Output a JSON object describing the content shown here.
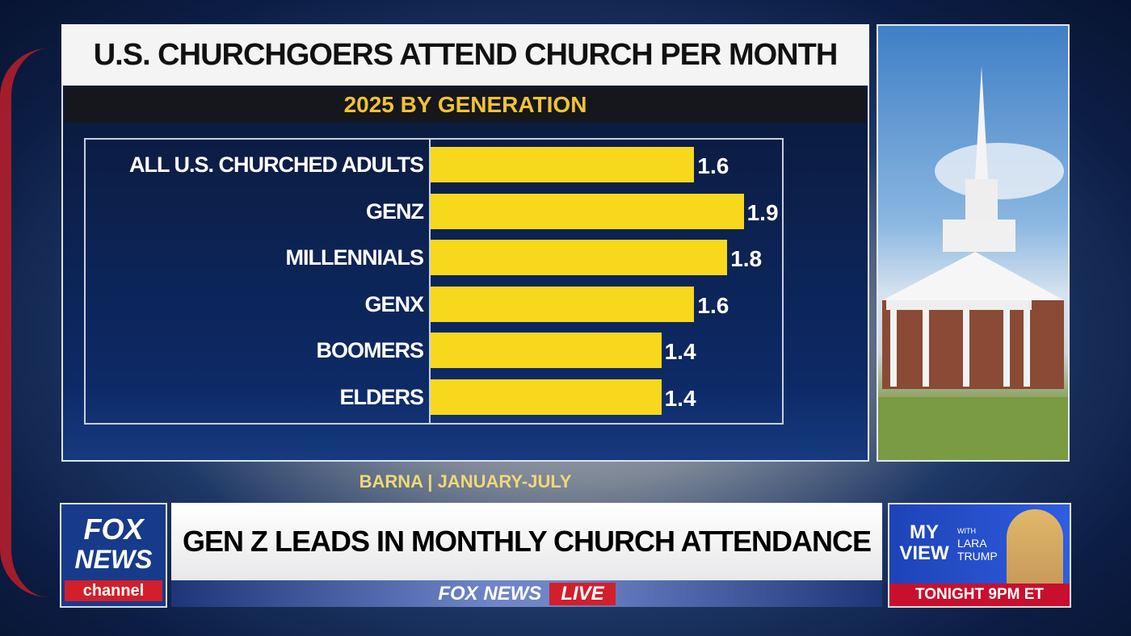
{
  "chart_data": {
    "type": "bar",
    "orientation": "horizontal",
    "title": "U.S. CHURCHGOERS ATTEND CHURCH PER MONTH",
    "subtitle": "2025 BY GENERATION",
    "categories": [
      "ALL U.S. CHURCHED ADULTS",
      "GENZ",
      "MILLENNIALS",
      "GENX",
      "BOOMERS",
      "ELDERS"
    ],
    "values": [
      1.6,
      1.9,
      1.8,
      1.6,
      1.4,
      1.4
    ],
    "value_labels": [
      "1.6",
      "1.9",
      "1.8",
      "1.6",
      "1.4",
      "1.4"
    ],
    "xlim": [
      0,
      2.0
    ],
    "xlabel": "",
    "ylabel": "",
    "grid": false,
    "bar_color": "#f8d81c"
  },
  "source": "BARNA | JANUARY-JULY",
  "lower_third": {
    "headline": "GEN Z LEADS IN MONTHLY CHURCH ATTENDANCE",
    "network": "FOX NEWS",
    "live": "LIVE",
    "logo": {
      "line1": "FOX",
      "line2": "NEWS",
      "line3": "channel"
    }
  },
  "promo": {
    "show": "MY VIEW",
    "with": "WITH",
    "host": "LARA TRUMP",
    "time": "TONIGHT 9PM ET"
  }
}
